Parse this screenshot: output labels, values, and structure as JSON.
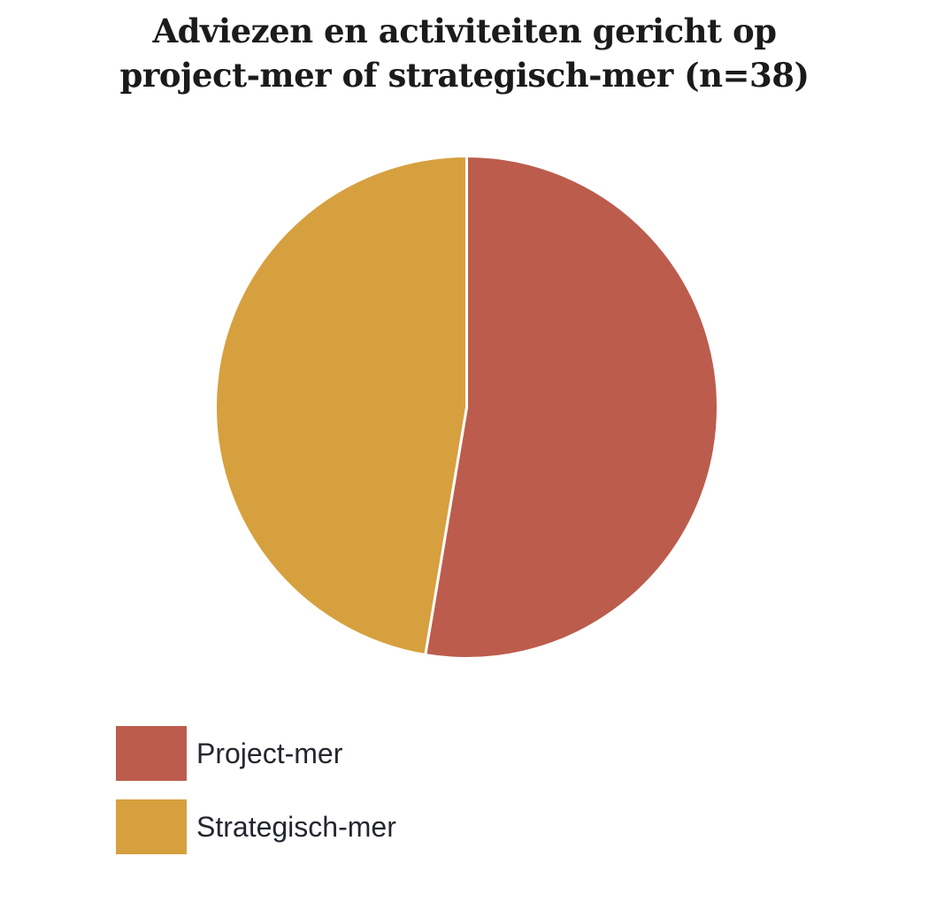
{
  "title": {
    "lines": [
      "Adviezen en activiteiten gericht op",
      "project-mer of strategisch-mer (n=38)"
    ],
    "color": "#1b1b1b"
  },
  "chart_data": {
    "type": "pie",
    "title": "Adviezen en activiteiten gericht op project-mer of strategisch-mer (n=38)",
    "n": 38,
    "start_angle_deg": 0,
    "direction": "clockwise",
    "slice_gap_color": "#ffffff",
    "slice_gap_width": 3,
    "legend_position": "bottom-left",
    "series": [
      {
        "label": "Project-mer",
        "value": 20,
        "fraction": 0.526,
        "color": "#bc5c4d"
      },
      {
        "label": "Strategisch-mer",
        "value": 18,
        "fraction": 0.474,
        "color": "#d7a03e"
      }
    ]
  }
}
